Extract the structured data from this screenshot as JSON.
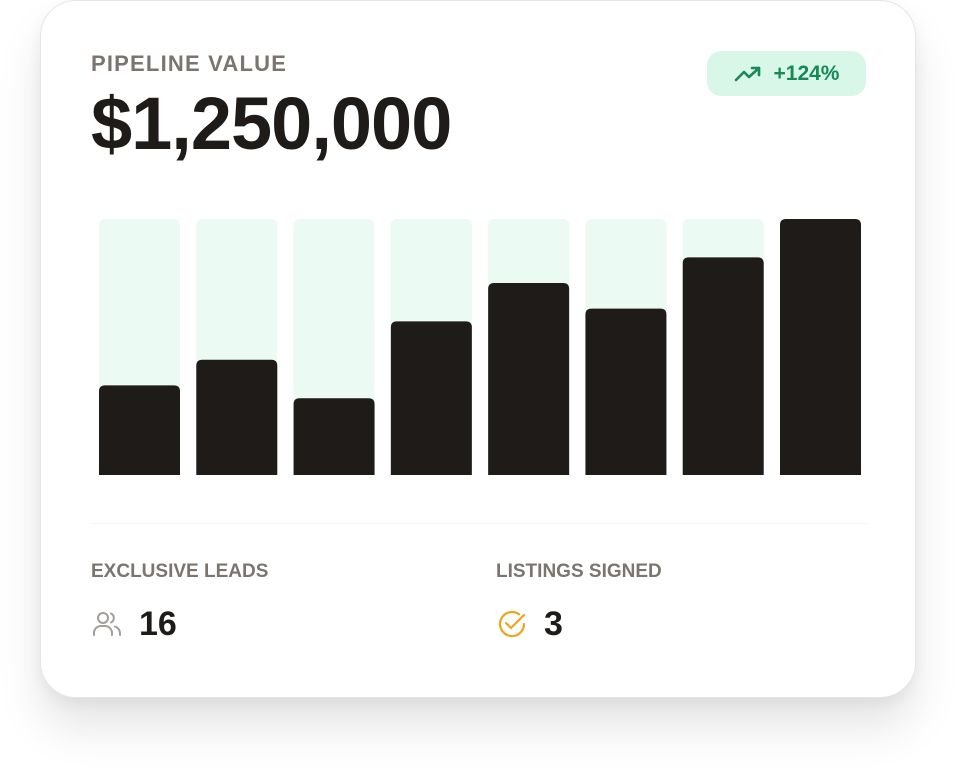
{
  "card": {
    "title": "PIPELINE VALUE",
    "value": "$1,250,000",
    "badge": {
      "text": "+124%",
      "icon": "trending-up-icon",
      "color": "#158a54",
      "background": "#d9f7e9"
    }
  },
  "chart_data": {
    "type": "bar",
    "values": [
      0.35,
      0.45,
      0.3,
      0.6,
      0.75,
      0.65,
      0.85,
      1.0
    ],
    "ylim": [
      0,
      1
    ],
    "bar_color": "#1e1b19",
    "track_color": "#ebfaf3",
    "grid": false
  },
  "stats": {
    "exclusive_leads": {
      "label": "EXCLUSIVE LEADS",
      "value": "16",
      "icon": "users-icon",
      "icon_color": "#a39d98"
    },
    "listings_signed": {
      "label": "LISTINGS SIGNED",
      "value": "3",
      "icon": "check-circle-icon",
      "icon_color": "#f0a41e"
    }
  }
}
